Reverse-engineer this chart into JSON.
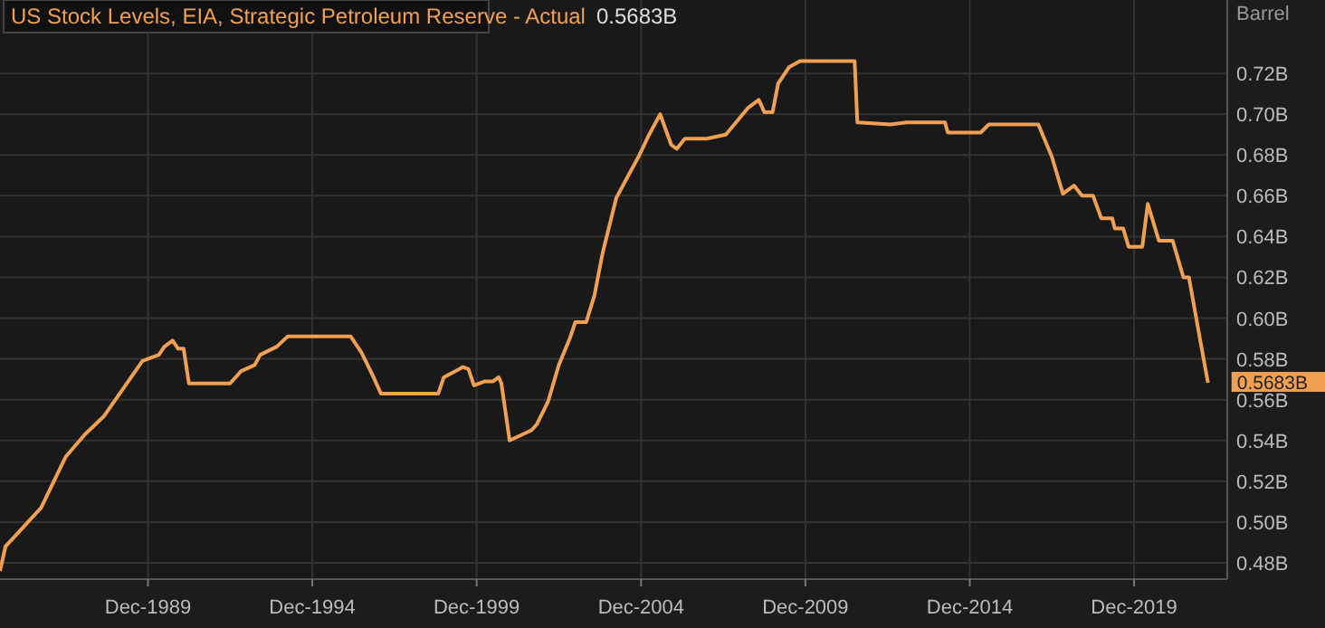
{
  "chart_data": {
    "type": "line",
    "title": "US Stock Levels, EIA, Strategic Petroleum Reserve - Actual",
    "subtitle": "0.5683B",
    "ylabel": "Barrel",
    "annotations": [
      {
        "text": "0.5683B",
        "x": "2022-03",
        "y": 0.5683
      }
    ],
    "grid": true,
    "marker": "none",
    "line_style": "solid",
    "xlim": [
      "1985-06",
      "2022-10"
    ],
    "ylim": [
      0.472,
      0.756
    ],
    "xticks": [
      {
        "value": "1989-12",
        "label": "Dec-1989"
      },
      {
        "value": "1994-12",
        "label": "Dec-1994"
      },
      {
        "value": "1999-12",
        "label": "Dec-1999"
      },
      {
        "value": "2004-12",
        "label": "Dec-2004"
      },
      {
        "value": "2009-12",
        "label": "Dec-2009"
      },
      {
        "value": "2014-12",
        "label": "Dec-2014"
      },
      {
        "value": "2019-12",
        "label": "Dec-2019"
      }
    ],
    "yticks": [
      {
        "value": 0.48,
        "label": "0.48B"
      },
      {
        "value": 0.5,
        "label": "0.50B"
      },
      {
        "value": 0.52,
        "label": "0.52B"
      },
      {
        "value": 0.54,
        "label": "0.54B"
      },
      {
        "value": 0.56,
        "label": "0.56B"
      },
      {
        "value": 0.58,
        "label": "0.58B"
      },
      {
        "value": 0.6,
        "label": "0.60B"
      },
      {
        "value": 0.62,
        "label": "0.62B"
      },
      {
        "value": 0.64,
        "label": "0.64B"
      },
      {
        "value": 0.66,
        "label": "0.66B"
      },
      {
        "value": 0.68,
        "label": "0.68B"
      },
      {
        "value": 0.7,
        "label": "0.70B"
      },
      {
        "value": 0.72,
        "label": "0.72B"
      }
    ],
    "series": [
      {
        "color": "#f0a050",
        "x": [
          "1985-06",
          "1985-08",
          "1986-09",
          "1987-06",
          "1988-01",
          "1988-08",
          "1989-10",
          "1990-04",
          "1990-06",
          "1990-09",
          "1990-11",
          "1991-01",
          "1991-03",
          "1992-06",
          "1992-10",
          "1993-03",
          "1993-05",
          "1993-11",
          "1994-03",
          "1996-02",
          "1996-06",
          "1996-10",
          "1997-01",
          "1998-10",
          "1998-12",
          "1999-07",
          "1999-09",
          "1999-11",
          "2000-03",
          "2000-06",
          "2000-08",
          "2000-09",
          "2000-12",
          "2001-08",
          "2001-10",
          "2002-02",
          "2002-06",
          "2002-10",
          "2002-12",
          "2003-04",
          "2003-07",
          "2003-10",
          "2004-03",
          "2004-07",
          "2004-11",
          "2005-03",
          "2005-07",
          "2005-11",
          "2006-01",
          "2006-04",
          "2006-12",
          "2007-07",
          "2008-03",
          "2008-07",
          "2008-09",
          "2008-12",
          "2009-02",
          "2009-06",
          "2009-10",
          "2011-06",
          "2011-07",
          "2012-07",
          "2013-01",
          "2014-03",
          "2014-04",
          "2015-04",
          "2015-07",
          "2017-01",
          "2017-06",
          "2017-10",
          "2018-02",
          "2018-05",
          "2018-09",
          "2018-12",
          "2019-04",
          "2019-05",
          "2019-08",
          "2019-10",
          "2020-03",
          "2020-05",
          "2020-09",
          "2021-02",
          "2021-06",
          "2021-08",
          "2021-12",
          "2022-03"
        ],
        "values": [
          0.476,
          0.488,
          0.507,
          0.532,
          0.543,
          0.552,
          0.579,
          0.582,
          0.586,
          0.589,
          0.585,
          0.585,
          0.568,
          0.568,
          0.574,
          0.577,
          0.582,
          0.586,
          0.591,
          0.591,
          0.583,
          0.572,
          0.563,
          0.563,
          0.571,
          0.576,
          0.575,
          0.567,
          0.569,
          0.569,
          0.571,
          0.568,
          0.54,
          0.545,
          0.548,
          0.559,
          0.577,
          0.59,
          0.598,
          0.598,
          0.611,
          0.632,
          0.659,
          0.669,
          0.679,
          0.69,
          0.7,
          0.685,
          0.683,
          0.688,
          0.688,
          0.69,
          0.703,
          0.707,
          0.701,
          0.701,
          0.715,
          0.723,
          0.726,
          0.726,
          0.696,
          0.695,
          0.696,
          0.696,
          0.691,
          0.691,
          0.695,
          0.695,
          0.679,
          0.661,
          0.665,
          0.66,
          0.66,
          0.649,
          0.649,
          0.644,
          0.644,
          0.635,
          0.635,
          0.656,
          0.638,
          0.638,
          0.62,
          0.62,
          0.59,
          0.5683
        ]
      }
    ]
  }
}
